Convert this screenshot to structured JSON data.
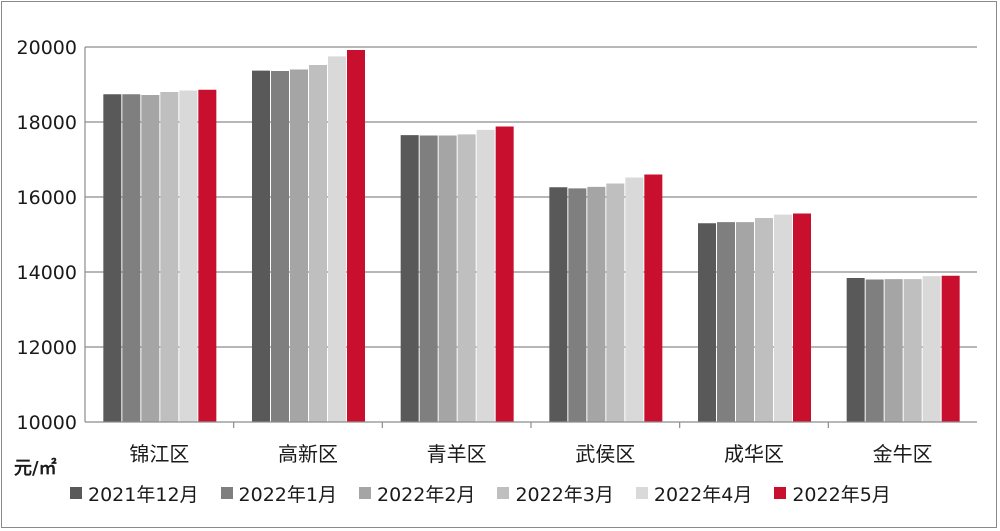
{
  "chart_data": {
    "type": "bar",
    "title": "",
    "xlabel": "",
    "ylabel": "元/㎡",
    "ylim": [
      10000,
      20000
    ],
    "yticks": [
      10000,
      12000,
      14000,
      16000,
      18000,
      20000
    ],
    "grid": true,
    "legend_position": "bottom",
    "categories": [
      "锦江区",
      "高新区",
      "青羊区",
      "武侯区",
      "成华区",
      "金牛区"
    ],
    "series": [
      {
        "name": "2021年12月",
        "color": "#595959",
        "values": [
          18740,
          19370,
          17650,
          16260,
          15300,
          13840
        ]
      },
      {
        "name": "2022年1月",
        "color": "#7f7f7f",
        "values": [
          18740,
          19360,
          17640,
          16230,
          15330,
          13800
        ]
      },
      {
        "name": "2022年2月",
        "color": "#a5a5a5",
        "values": [
          18720,
          19400,
          17640,
          16270,
          15330,
          13810
        ]
      },
      {
        "name": "2022年3月",
        "color": "#bfbfbf",
        "values": [
          18800,
          19520,
          17670,
          16360,
          15440,
          13810
        ]
      },
      {
        "name": "2022年4月",
        "color": "#d9d9d9",
        "values": [
          18840,
          19750,
          17790,
          16520,
          15530,
          13890
        ]
      },
      {
        "name": "2022年5月",
        "color": "#c8102e",
        "values": [
          18860,
          19920,
          17880,
          16600,
          15560,
          13900
        ]
      }
    ]
  }
}
